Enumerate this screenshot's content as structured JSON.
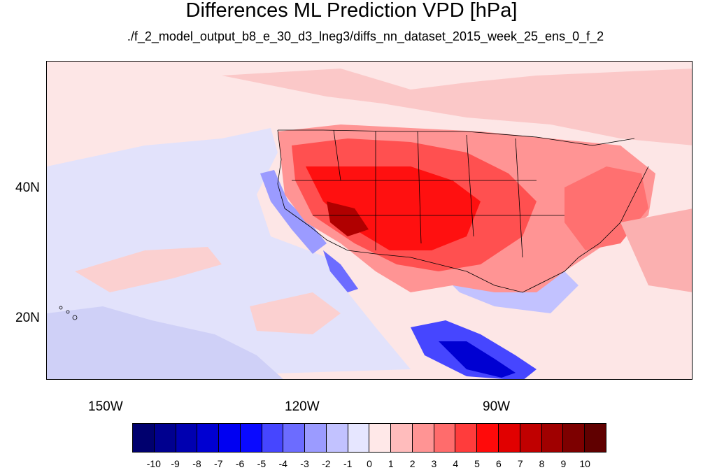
{
  "title": "Differences ML Prediction VPD [hPa]",
  "subtitle": "./f_2_model_output_b8_e_30_d3_lneg3/diffs_nn_dataset_2015_week_25_ens_0_f_2",
  "axes": {
    "y_labels": [
      "40N",
      "20N"
    ],
    "x_labels": [
      "150W",
      "120W",
      "90W"
    ]
  },
  "colorbar": {
    "labels": [
      "-10",
      "-9",
      "-8",
      "-7",
      "-6",
      "-5",
      "-4",
      "-3",
      "-2",
      "-1",
      "0",
      "1",
      "2",
      "3",
      "4",
      "5",
      "6",
      "7",
      "8",
      "9",
      "10"
    ],
    "colors": [
      "#00006e",
      "#00008f",
      "#0000b0",
      "#0000d2",
      "#0000f2",
      "#0a0aff",
      "#4646ff",
      "#6c6cff",
      "#9b9bff",
      "#c2c2ff",
      "#e6e6ff",
      "#ffe8e8",
      "#ffbcbc",
      "#ff9494",
      "#ff6c6c",
      "#ff3c3c",
      "#ff0a0a",
      "#e10000",
      "#c00000",
      "#a00000",
      "#7d0000",
      "#600000"
    ]
  },
  "colors": {
    "background_field": "#fde6e6",
    "negative_light": "#d9d9ff",
    "positive_strong": "#ff2020"
  }
}
